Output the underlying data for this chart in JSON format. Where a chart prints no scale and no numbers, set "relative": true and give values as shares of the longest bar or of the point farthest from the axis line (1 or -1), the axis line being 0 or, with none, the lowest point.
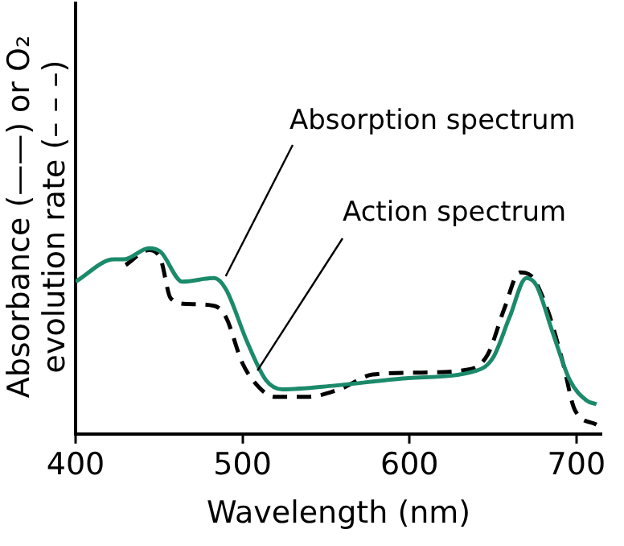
{
  "chart_data": {
    "type": "line",
    "relative": true,
    "xlabel": "Wavelength (nm)",
    "ylabel": "Absorbance (——) or O₂ evolution rate (– – –)",
    "xlim": [
      400,
      715
    ],
    "xticks": [
      400,
      500,
      600,
      700
    ],
    "grid": false,
    "legend": false,
    "marker": "none",
    "series": [
      {
        "name": "Absorption spectrum",
        "color": "#1b8a6b",
        "line_style": "solid",
        "x": [
          400,
          423,
          429,
          444,
          451,
          464,
          483,
          490,
          503,
          514,
          524,
          555,
          598,
          640,
          650,
          660,
          670,
          676,
          686,
          696,
          706,
          712
        ],
        "values": [
          0.82,
          0.94,
          0.94,
          1,
          0.98,
          0.82,
          0.84,
          0.78,
          0.49,
          0.29,
          0.24,
          0.26,
          0.3,
          0.34,
          0.41,
          0.63,
          0.84,
          0.8,
          0.54,
          0.29,
          0.18,
          0.16
        ]
      },
      {
        "name": "Action spectrum",
        "color": "#000000",
        "line_style": "dashed",
        "x": [
          430,
          444,
          451,
          457,
          467,
          483,
          490,
          500,
          510,
          519,
          539,
          558,
          578,
          604,
          637,
          647,
          657,
          666,
          673,
          683,
          692,
          699,
          712
        ],
        "values": [
          0.91,
          0.99,
          0.94,
          0.73,
          0.7,
          0.69,
          0.63,
          0.38,
          0.25,
          0.2,
          0.2,
          0.24,
          0.32,
          0.33,
          0.35,
          0.43,
          0.68,
          0.87,
          0.85,
          0.66,
          0.38,
          0.13,
          0.05
        ]
      }
    ]
  }
}
